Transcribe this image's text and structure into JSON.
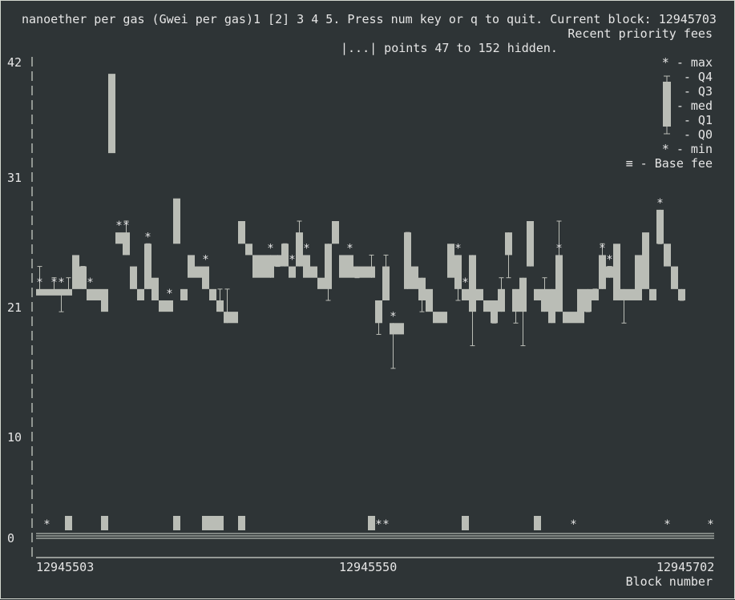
{
  "header": {
    "line1": "nanoether per gas (Gwei per gas)1 [2] 3 4 5. Press num key or q to quit. Current block: 12945703",
    "line2": "Recent priority fees",
    "line3": "|...| points 47 to 152 hidden."
  },
  "legend": {
    "max": "* - max",
    "q4": "- Q4",
    "q3": "- Q3",
    "med": "- med",
    "q1": "- Q1",
    "q0": "- Q0",
    "min": "* - min",
    "base": "≡ - Base fee"
  },
  "colors": {
    "background": "#2e3436",
    "bar": "#babdb6",
    "text": "#e6e6e6"
  },
  "chart_data": {
    "type": "candlestick",
    "title": "Recent priority fees",
    "xlabel": "Block number",
    "ylabel": "nanoether per gas (Gwei per gas)",
    "ylim": [
      0,
      42
    ],
    "y_ticks": [
      "42",
      "31",
      "21",
      "10",
      "0"
    ],
    "x_ticks": [
      "12945503",
      "12945550",
      "12945702"
    ],
    "hidden_range": "points 47 to 152 hidden",
    "base_fee": 0,
    "boxes": [
      [
        0,
        22,
        21.5,
        "*",
        24
      ],
      [
        1,
        22,
        21.5,
        null,
        null
      ],
      [
        2,
        22,
        21.5,
        "*",
        23
      ],
      [
        3,
        22,
        21.5,
        "*",
        20
      ],
      [
        4,
        22,
        21.5,
        null,
        23
      ],
      [
        5,
        25,
        22,
        null,
        null
      ],
      [
        6,
        24,
        22,
        null,
        24
      ],
      [
        7,
        22,
        21,
        "*",
        null
      ],
      [
        8,
        22,
        21,
        null,
        null
      ],
      [
        9,
        22,
        20,
        null,
        null
      ],
      [
        10,
        41,
        34,
        null,
        null
      ],
      [
        11,
        27,
        26,
        "*",
        null
      ],
      [
        12,
        27,
        25,
        "*",
        28
      ],
      [
        13,
        24,
        22,
        null,
        null
      ],
      [
        14,
        22,
        21,
        null,
        null
      ],
      [
        15,
        26,
        22,
        "*",
        26
      ],
      [
        16,
        23,
        21,
        null,
        null
      ],
      [
        17,
        21,
        20,
        null,
        null
      ],
      [
        18,
        21,
        20,
        "*",
        null
      ],
      [
        19,
        30,
        26,
        null,
        null
      ],
      [
        20,
        22,
        21,
        null,
        null
      ],
      [
        21,
        25,
        23,
        null,
        null
      ],
      [
        22,
        24,
        23,
        null,
        null
      ],
      [
        23,
        24,
        22,
        "*",
        null
      ],
      [
        24,
        22,
        21,
        null,
        null
      ],
      [
        25,
        21,
        20,
        null,
        22
      ],
      [
        26,
        20,
        19,
        null,
        22
      ],
      [
        27,
        20,
        19,
        null,
        null
      ],
      [
        28,
        28,
        26,
        null,
        null
      ],
      [
        29,
        26,
        25,
        null,
        null
      ],
      [
        30,
        25,
        23,
        null,
        null
      ],
      [
        31,
        25,
        23,
        null,
        null
      ],
      [
        32,
        25,
        23,
        "*",
        24
      ],
      [
        33,
        25,
        24,
        null,
        24
      ],
      [
        34,
        26,
        24,
        null,
        26
      ],
      [
        35,
        24,
        23,
        "*",
        null
      ],
      [
        36,
        27,
        24,
        null,
        28
      ],
      [
        37,
        25,
        23,
        "*",
        null
      ],
      [
        38,
        24,
        23,
        null,
        null
      ],
      [
        39,
        23,
        22,
        null,
        null
      ],
      [
        40,
        26,
        22,
        null,
        21
      ],
      [
        41,
        28,
        26,
        null,
        null
      ],
      [
        42,
        25,
        23,
        null,
        null
      ],
      [
        43,
        25,
        23,
        "*",
        null
      ],
      [
        44,
        24,
        23,
        null,
        23
      ],
      [
        45,
        24,
        23,
        null,
        null
      ],
      [
        46,
        24,
        23,
        null,
        25
      ],
      [
        47,
        21,
        19,
        null,
        18
      ],
      [
        48,
        24,
        21,
        null,
        25
      ],
      [
        49,
        19,
        18,
        "*",
        15
      ],
      [
        50,
        19,
        18,
        null,
        null
      ],
      [
        51,
        27,
        22,
        null,
        27
      ],
      [
        52,
        24,
        22,
        null,
        null
      ],
      [
        53,
        23,
        21,
        null,
        20
      ],
      [
        54,
        22,
        20,
        null,
        null
      ],
      [
        55,
        20,
        19,
        null,
        null
      ],
      [
        56,
        20,
        19,
        null,
        null
      ],
      [
        57,
        26,
        23,
        null,
        null
      ],
      [
        58,
        25,
        22,
        "*",
        21
      ],
      [
        59,
        22,
        21,
        "*",
        null
      ],
      [
        60,
        25,
        20,
        null,
        17
      ],
      [
        61,
        22,
        21,
        null,
        null
      ],
      [
        62,
        21,
        20,
        null,
        null
      ],
      [
        63,
        21,
        19,
        null,
        19
      ],
      [
        64,
        22,
        20,
        null,
        23
      ],
      [
        65,
        27,
        25,
        null,
        23
      ],
      [
        66,
        22,
        20,
        null,
        19
      ],
      [
        67,
        23,
        20,
        null,
        17
      ],
      [
        68,
        28,
        24,
        null,
        27
      ],
      [
        69,
        22,
        21,
        null,
        null
      ],
      [
        70,
        22,
        20,
        null,
        23
      ],
      [
        71,
        22,
        19,
        null,
        20
      ],
      [
        72,
        25,
        20,
        "*",
        28
      ],
      [
        73,
        20,
        19,
        null,
        null
      ],
      [
        74,
        20,
        19,
        null,
        null
      ],
      [
        75,
        22,
        19,
        null,
        null
      ],
      [
        76,
        22,
        20,
        null,
        20
      ],
      [
        77,
        22,
        21,
        null,
        22
      ],
      [
        78,
        25,
        22,
        "*",
        26
      ],
      [
        79,
        24,
        23,
        "*",
        24
      ],
      [
        80,
        26,
        21,
        null,
        null
      ],
      [
        81,
        22,
        21,
        null,
        19
      ],
      [
        82,
        22,
        21,
        null,
        null
      ],
      [
        83,
        25,
        21,
        null,
        null
      ],
      [
        84,
        27,
        22,
        null,
        null
      ],
      [
        85,
        22,
        21,
        null,
        null
      ],
      [
        86,
        29,
        26,
        "*",
        26
      ],
      [
        87,
        26,
        24,
        null,
        null
      ],
      [
        88,
        24,
        22,
        null,
        null
      ],
      [
        89,
        22,
        21,
        null,
        21
      ]
    ],
    "base_fee_markers": [
      [
        1,
        "*"
      ],
      [
        4,
        "bar"
      ],
      [
        9,
        "bar"
      ],
      [
        19,
        "bar"
      ],
      [
        23,
        "bar"
      ],
      [
        24,
        "bar"
      ],
      [
        25,
        "bar"
      ],
      [
        28,
        "bar"
      ],
      [
        46,
        "bar"
      ],
      [
        47,
        "*"
      ],
      [
        48,
        "*"
      ],
      [
        59,
        "bar"
      ],
      [
        69,
        "bar"
      ],
      [
        74,
        "*"
      ],
      [
        87,
        "*"
      ],
      [
        93,
        "*"
      ]
    ]
  }
}
